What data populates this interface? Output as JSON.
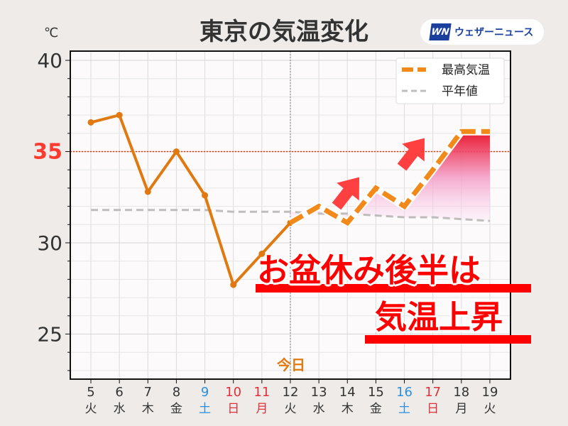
{
  "title": "東京の気温変化",
  "unit_label": "℃",
  "logo": {
    "mark": "WN",
    "text": "ウェザーニュース"
  },
  "today_label": "今日",
  "banner": {
    "line1": "お盆休み後半は",
    "line2": "気温上昇"
  },
  "colors": {
    "forecast": "#f28a1b",
    "observed": "#e07a10",
    "normal": "#c0bcbc",
    "threshold": "#ff3b30",
    "saturday": "#2a8fe0",
    "holiday": "#e0303a",
    "weekday": "#333333"
  },
  "chart_data": {
    "type": "line",
    "title": "東京の気温変化",
    "ylabel": "℃",
    "ylim": [
      22.5,
      40.5
    ],
    "yticks": [
      25,
      30,
      35,
      40
    ],
    "highlight_line": 35,
    "today": 12,
    "grid": true,
    "legend_position": "top-right",
    "x": [
      5,
      6,
      7,
      8,
      9,
      10,
      11,
      12,
      13,
      14,
      15,
      16,
      17,
      18,
      19
    ],
    "x_weekday": [
      "火",
      "水",
      "木",
      "金",
      "土",
      "日",
      "月",
      "火",
      "水",
      "木",
      "金",
      "土",
      "日",
      "月",
      "火"
    ],
    "x_daytype": [
      "w",
      "w",
      "w",
      "w",
      "sat",
      "hol",
      "hol",
      "w",
      "w",
      "w",
      "w",
      "sat",
      "hol",
      "w",
      "w"
    ],
    "series": [
      {
        "name": "最高気温",
        "observed": [
          36.6,
          37.0,
          32.8,
          35.0,
          32.6,
          27.7,
          29.4,
          31.1,
          null,
          null,
          null,
          null,
          null,
          null,
          null
        ],
        "forecast": [
          null,
          null,
          null,
          null,
          null,
          null,
          null,
          31.1,
          32.0,
          31.1,
          33.0,
          32.0,
          34.0,
          36.1,
          36.1
        ]
      },
      {
        "name": "平年値",
        "values": [
          31.8,
          31.8,
          31.8,
          31.8,
          31.8,
          31.7,
          31.7,
          31.7,
          31.6,
          31.6,
          31.5,
          31.4,
          31.4,
          31.3,
          31.2
        ]
      }
    ]
  }
}
